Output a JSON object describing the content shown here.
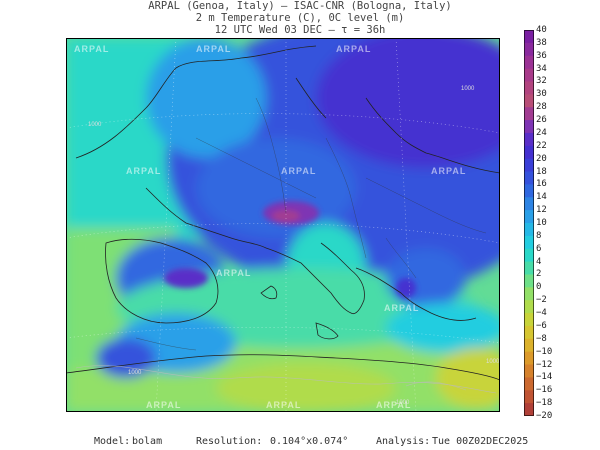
{
  "header": {
    "line1": "ARPAL (Genoa, Italy)  –  ISAC-CNR (Bologna, Italy)",
    "line2": "2 m Temperature (C), 0C level (m)",
    "line3": "12 UTC Wed 03 DEC  –  τ = 36h"
  },
  "footer": {
    "model_label": "Model:",
    "model_value": "bolam",
    "resolution_label": "Resolution:",
    "resolution_value": "0.104°x0.074°",
    "analysis_label": "Analysis:",
    "analysis_value": "Tue 00Z02DEC2025"
  },
  "watermark_text": "ARPAL",
  "colorbar": {
    "labels": [
      "40",
      "38",
      "36",
      "34",
      "32",
      "30",
      "28",
      "26",
      "24",
      "22",
      "20",
      "18",
      "16",
      "14",
      "12",
      "10",
      "8",
      "6",
      "4",
      "2",
      "0",
      "−2",
      "−4",
      "−6",
      "−8",
      "−10",
      "−12",
      "−14",
      "−16",
      "−18",
      "−20"
    ],
    "colors": [
      "#7a1fa2",
      "#8a2a9e",
      "#9b3295",
      "#a83a8a",
      "#b2447f",
      "#b84e77",
      "#a23c92",
      "#7e34b4",
      "#5a2fc8",
      "#4430d0",
      "#3a3fd8",
      "#3552dc",
      "#3068e0",
      "#2e84e4",
      "#2aa0e8",
      "#25b8e6",
      "#22cde0",
      "#2ad8c8",
      "#48dca8",
      "#6ee088",
      "#92e068",
      "#b0dc4c",
      "#c8d43a",
      "#d6c632",
      "#dcb22c",
      "#dc9a2a",
      "#d6822c",
      "#cc6a30",
      "#c05434",
      "#b04038"
    ],
    "range": [
      -20,
      40
    ],
    "unit": "C"
  },
  "contour_labels": [
    "1000",
    "1000",
    "1000",
    "1000",
    "1000"
  ]
}
